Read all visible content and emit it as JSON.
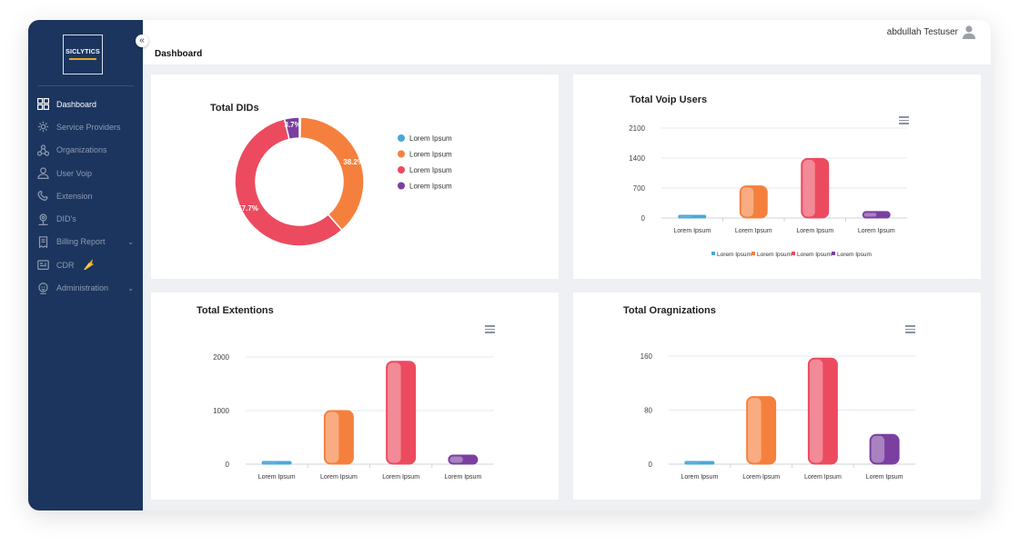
{
  "sidebar": {
    "logo": "SICLYTICS",
    "collapse": "«",
    "items": [
      {
        "label": "Dashboard",
        "icon": "dashboard-icon",
        "active": true
      },
      {
        "label": "Service Providers",
        "icon": "gear-icon"
      },
      {
        "label": "Organizations",
        "icon": "organizations-icon"
      },
      {
        "label": "User Voip",
        "icon": "user-icon"
      },
      {
        "label": "Extension",
        "icon": "extension-icon"
      },
      {
        "label": "DID's",
        "icon": "did-icon"
      },
      {
        "label": "Billing Report",
        "icon": "document-icon",
        "chevron": "⌄"
      },
      {
        "label": "CDR",
        "icon": "cdr-icon"
      },
      {
        "label": "Administration",
        "icon": "admin-icon",
        "chevron": "⌄"
      }
    ]
  },
  "header": {
    "page_title": "Dashboard",
    "user_name": "abdullah Testuser"
  },
  "colors": {
    "blue": "#4aa8d8",
    "orange": "#f5803e",
    "red": "#ec4b5f",
    "purple": "#7b3fa0"
  },
  "chart_data": [
    {
      "id": "dids",
      "type": "pie",
      "title": "Total DIDs",
      "labels": [
        "Lorem Ipsum",
        "Lorem Ipsum",
        "Lorem Ipsum",
        "Lorem Ipsum"
      ],
      "values": [
        0.3,
        38.2,
        57.7,
        3.7
      ],
      "data_labels": [
        "",
        "38.2%",
        "57.7%",
        "3.7%"
      ],
      "legend": "right"
    },
    {
      "id": "voip",
      "type": "bar",
      "title": "Total Voip Users",
      "categories": [
        "Lorem Ipsum",
        "Lorem Ipsum",
        "Lorem Ipsum",
        "Lorem Ipsum"
      ],
      "values": [
        15,
        750,
        1390,
        150
      ],
      "yticks": [
        "2100",
        "1400",
        "700",
        "0"
      ],
      "ylim": [
        0,
        2100
      ],
      "legend": "bottom",
      "legend_labels": [
        "Lorem Ipsum",
        "Lorem Ipsum",
        "Lorem Ipsum",
        "Lorem Ipsum"
      ]
    },
    {
      "id": "ext",
      "type": "bar",
      "title": "Total Extentions",
      "categories": [
        "Lorem Ipsum",
        "Lorem Ipsum",
        "Lorem Ipsum",
        "Lorem Ipsum"
      ],
      "values": [
        20,
        1000,
        1920,
        170
      ],
      "yticks": [
        "2000",
        "1000",
        "0"
      ],
      "ylim": [
        0,
        2000
      ],
      "legend": "bottom",
      "legend_labels": [
        "Lorem Ipsum",
        "Lorem Ipsum",
        "Lorem Ipsum",
        "Lorem Ipsum"
      ]
    },
    {
      "id": "org",
      "type": "bar",
      "title": "Total Oragnizations",
      "categories": [
        "Lorem Ipsum",
        "Lorem Ipsum",
        "Lorem Ipsum",
        "Lorem Ipsum"
      ],
      "values": [
        2,
        100,
        157,
        44
      ],
      "yticks": [
        "160",
        "80",
        "0"
      ],
      "ylim": [
        0,
        160
      ],
      "legend": "bottom",
      "legend_labels": [
        "Lorem Ipsum",
        "Lorem Ipsum",
        "Lorem Ipsum",
        "Lorem Ipsum"
      ]
    }
  ]
}
